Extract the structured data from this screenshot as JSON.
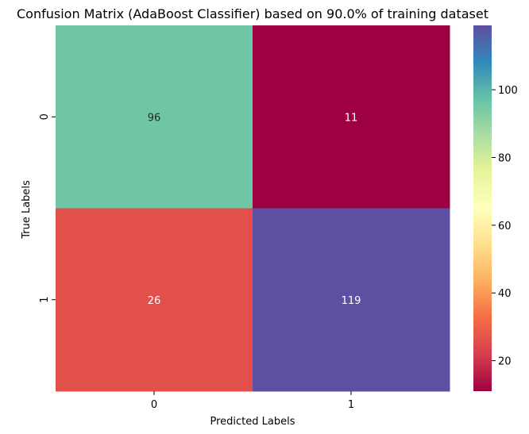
{
  "chart_data": {
    "type": "heatmap",
    "title": "Confusion Matrix (AdaBoost Classifier) based on 90.0% of training dataset",
    "xlabel": "Predicted Labels",
    "ylabel": "True Labels",
    "x_tick_labels": [
      "0",
      "1"
    ],
    "y_tick_labels": [
      "0",
      "1"
    ],
    "matrix": [
      [
        96,
        11
      ],
      [
        26,
        119
      ]
    ],
    "colormap": "Spectral",
    "colorbar": {
      "min": 11,
      "max": 119,
      "ticks": [
        20,
        40,
        60,
        80,
        100
      ]
    },
    "grid": false
  }
}
